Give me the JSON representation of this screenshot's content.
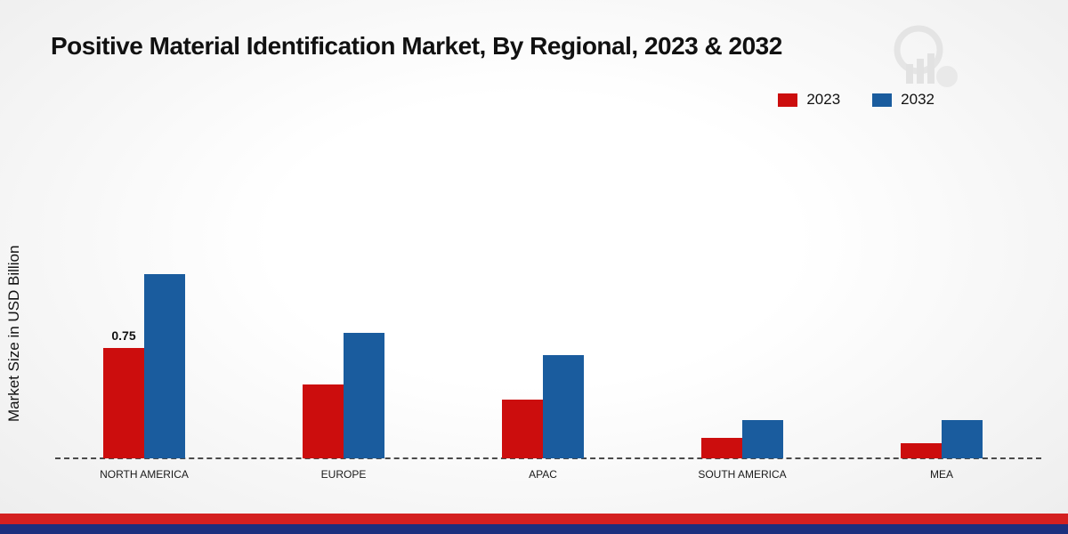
{
  "title": "Positive Material Identification Market, By Regional, 2023 & 2032",
  "ylabel": "Market Size in USD Billion",
  "chart_data": {
    "type": "bar",
    "categories": [
      "NORTH AMERICA",
      "EUROPE",
      "APAC",
      "SOUTH AMERICA",
      "MEA"
    ],
    "series": [
      {
        "name": "2023",
        "color": "#cc0d0d",
        "values": [
          0.75,
          0.5,
          0.4,
          0.14,
          0.1
        ]
      },
      {
        "name": "2032",
        "color": "#1a5c9e",
        "values": [
          1.25,
          0.85,
          0.7,
          0.26,
          0.26
        ]
      }
    ],
    "data_labels": [
      [
        "0.75",
        "",
        "",
        "",
        ""
      ],
      [
        "",
        "",
        "",
        "",
        ""
      ]
    ],
    "ylim": [
      0,
      1.5
    ],
    "grid": false,
    "legend_position": "top-right",
    "baseline_style": "dashed"
  },
  "footer": {
    "stripe_red": "#d42020",
    "stripe_navy": "#1b2f7e"
  },
  "watermark": {
    "name": "chart-logo-watermark"
  }
}
